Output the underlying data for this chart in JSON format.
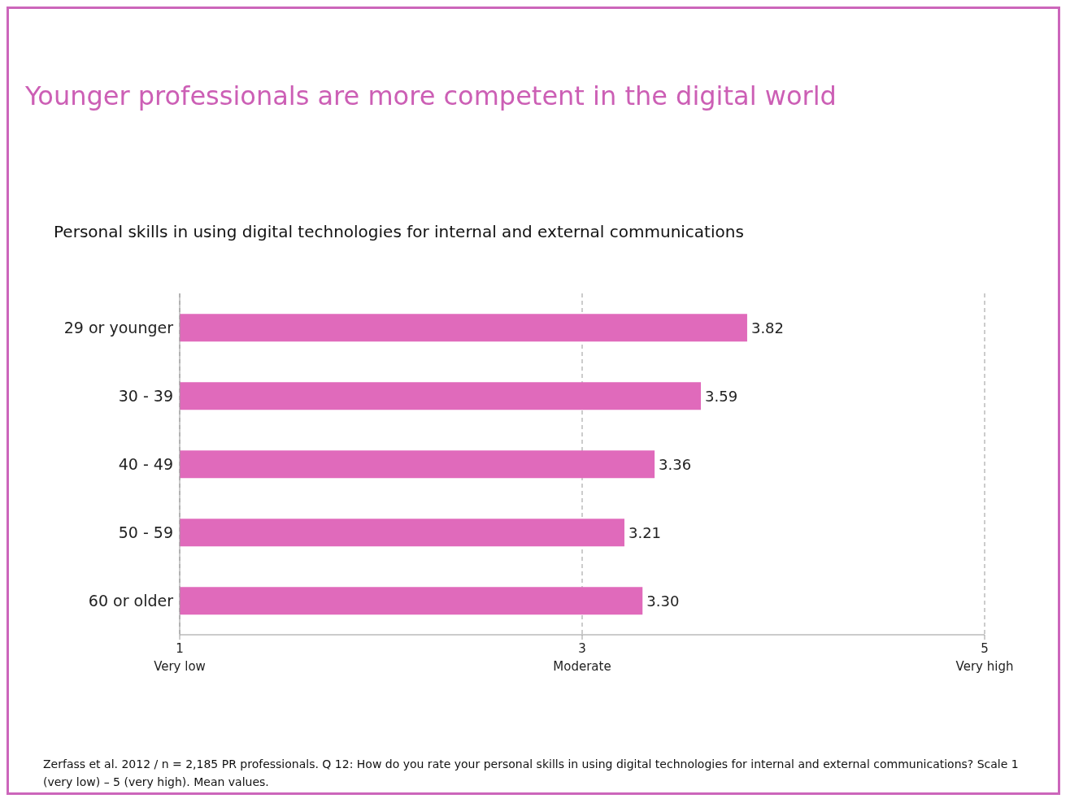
{
  "chart_data": {
    "type": "bar",
    "orientation": "horizontal",
    "title": "Younger professionals are more competent in the digital world",
    "subtitle": "Personal skills in using digital technologies for internal and external communications",
    "categories": [
      "29 or younger",
      "30 - 39",
      "40 - 49",
      "50 - 59",
      "60 or older"
    ],
    "values": [
      3.82,
      3.59,
      3.36,
      3.21,
      3.3
    ],
    "value_labels": [
      "3.82",
      "3.59",
      "3.36",
      "3.21",
      "3.30"
    ],
    "color": "#e06abb",
    "xlim": [
      1,
      5
    ],
    "xticks": [
      {
        "value": 1,
        "label": "1\nVery low"
      },
      {
        "value": 3,
        "label": "3\nModerate"
      },
      {
        "value": 5,
        "label": "5\nVery high"
      }
    ],
    "grid": "x",
    "line_style": "dashed",
    "annotations": [
      "Zerfass et al. 2012 / n = 2,185 PR professionals. Q 12: How do you rate your personal skills in using digital technologies for internal and external communications? Scale 1 (very low) – 5 (very high). Mean values."
    ]
  }
}
